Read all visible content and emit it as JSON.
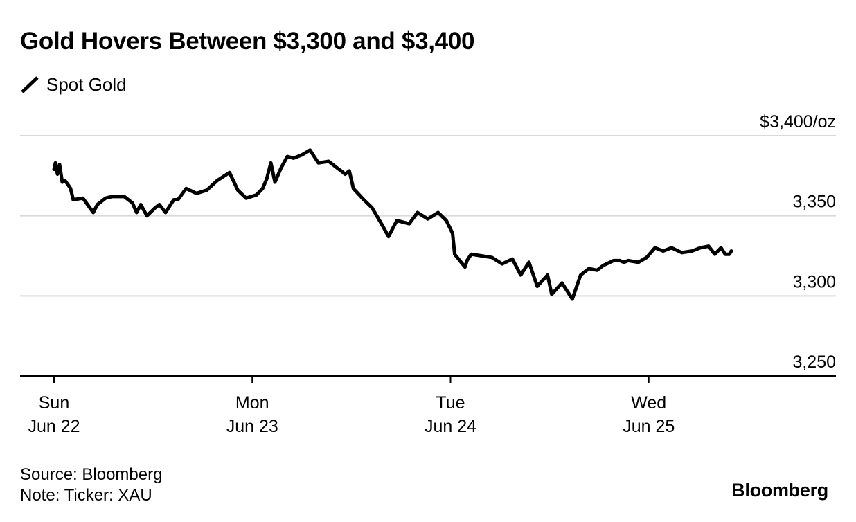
{
  "title": "Gold Hovers Between $3,300 and $3,400",
  "legend": {
    "label": "Spot Gold",
    "icon": "line-swatch-icon"
  },
  "source": "Source: Bloomberg",
  "note": "Note: Ticker: XAU",
  "brand": "Bloomberg",
  "colors": {
    "line": "#000000",
    "grid": "#d9d9d9",
    "axis": "#000000",
    "background": "#ffffff"
  },
  "chart_data": {
    "type": "line",
    "title": "Gold Hovers Between $3,300 and $3,400",
    "xlabel": "",
    "ylabel": "",
    "y_unit_label": "$3,400/oz",
    "ylim": [
      3250,
      3400
    ],
    "yticks": [
      3250,
      3300,
      3350,
      3400
    ],
    "ytick_labels": [
      "3,250",
      "3,300",
      "3,350",
      "$3,400/oz"
    ],
    "grid": true,
    "legend_position": "top-left",
    "x_domain": [
      "Jun 22 00:00",
      "Jun 25 10:00"
    ],
    "x_ticks": [
      {
        "value": "Jun 22 00:00",
        "line1": "Sun",
        "line2": "Jun 22"
      },
      {
        "value": "Jun 23 00:00",
        "line1": "Mon",
        "line2": "Jun 23"
      },
      {
        "value": "Jun 24 00:00",
        "line1": "Tue",
        "line2": "Jun 24"
      },
      {
        "value": "Jun 25 00:00",
        "line1": "Wed",
        "line2": "Jun 25"
      }
    ],
    "series": [
      {
        "name": "Spot Gold",
        "x": [
          "Jun 22 00:00",
          "Jun 22 00:10",
          "Jun 22 00:25",
          "Jun 22 00:40",
          "Jun 22 01:00",
          "Jun 22 01:20",
          "Jun 22 01:45",
          "Jun 22 02:00",
          "Jun 22 02:20",
          "Jun 22 03:30",
          "Jun 22 04:45",
          "Jun 22 05:15",
          "Jun 22 06:15",
          "Jun 22 07:00",
          "Jun 22 08:30",
          "Jun 22 09:30",
          "Jun 22 10:00",
          "Jun 22 10:30",
          "Jun 22 11:15",
          "Jun 22 12:15",
          "Jun 22 12:45",
          "Jun 22 13:30",
          "Jun 22 14:30",
          "Jun 22 15:00",
          "Jun 22 16:00",
          "Jun 22 17:15",
          "Jun 22 18:30",
          "Jun 22 19:45",
          "Jun 22 21:15",
          "Jun 22 22:15",
          "Jun 22 23:15",
          "Jun 23 00:30",
          "Jun 23 01:15",
          "Jun 23 01:45",
          "Jun 23 02:15",
          "Jun 23 02:45",
          "Jun 23 03:30",
          "Jun 23 04:15",
          "Jun 23 05:00",
          "Jun 23 06:00",
          "Jun 23 07:00",
          "Jun 23 08:00",
          "Jun 23 09:15",
          "Jun 23 10:15",
          "Jun 23 10:45",
          "Jun 23 11:15",
          "Jun 23 11:45",
          "Jun 23 12:15",
          "Jun 23 13:30",
          "Jun 23 14:30",
          "Jun 23 15:45",
          "Jun 23 16:30",
          "Jun 23 17:30",
          "Jun 23 19:00",
          "Jun 23 20:00",
          "Jun 23 21:15",
          "Jun 23 22:30",
          "Jun 23 23:30",
          "Jun 24 00:15",
          "Jun 24 00:30",
          "Jun 24 01:45",
          "Jun 24 02:00",
          "Jun 24 02:30",
          "Jun 24 03:45",
          "Jun 24 05:00",
          "Jun 24 06:15",
          "Jun 24 07:30",
          "Jun 24 08:30",
          "Jun 24 09:30",
          "Jun 24 10:30",
          "Jun 24 11:45",
          "Jun 24 12:15",
          "Jun 24 13:30",
          "Jun 24 14:45",
          "Jun 24 15:45",
          "Jun 24 16:45",
          "Jun 24 17:45",
          "Jun 24 18:30",
          "Jun 24 19:45",
          "Jun 24 20:30",
          "Jun 24 21:00",
          "Jun 24 21:30",
          "Jun 24 22:45",
          "Jun 24 23:45",
          "Jun 25 00:45",
          "Jun 25 01:45",
          "Jun 25 02:45",
          "Jun 25 04:00",
          "Jun 25 05:15",
          "Jun 25 06:15",
          "Jun 25 07:15",
          "Jun 25 08:00",
          "Jun 25 08:45",
          "Jun 25 09:15",
          "Jun 25 09:45",
          "Jun 25 10:00"
        ],
        "values": [
          3379,
          3383,
          3376,
          3382,
          3371,
          3372,
          3369,
          3367,
          3360,
          3361,
          3352,
          3357,
          3361,
          3362,
          3362,
          3358,
          3352,
          3357,
          3350,
          3355,
          3357,
          3352,
          3360,
          3360,
          3367,
          3364,
          3366,
          3372,
          3377,
          3366,
          3361,
          3363,
          3367,
          3373,
          3383,
          3371,
          3380,
          3387,
          3386,
          3388,
          3391,
          3383,
          3384,
          3380,
          3378,
          3376,
          3378,
          3367,
          3360,
          3355,
          3344,
          3337,
          3347,
          3345,
          3352,
          3348,
          3352,
          3347,
          3339,
          3326,
          3318,
          3322,
          3326,
          3325,
          3324,
          3320,
          3323,
          3313,
          3321,
          3306,
          3313,
          3301,
          3308,
          3298,
          3313,
          3317,
          3316,
          3319,
          3322,
          3322,
          3321,
          3322,
          3321,
          3324,
          3330,
          3328,
          3330,
          3327,
          3328,
          3330,
          3331,
          3326,
          3330,
          3326,
          3326,
          3328
        ]
      }
    ]
  }
}
